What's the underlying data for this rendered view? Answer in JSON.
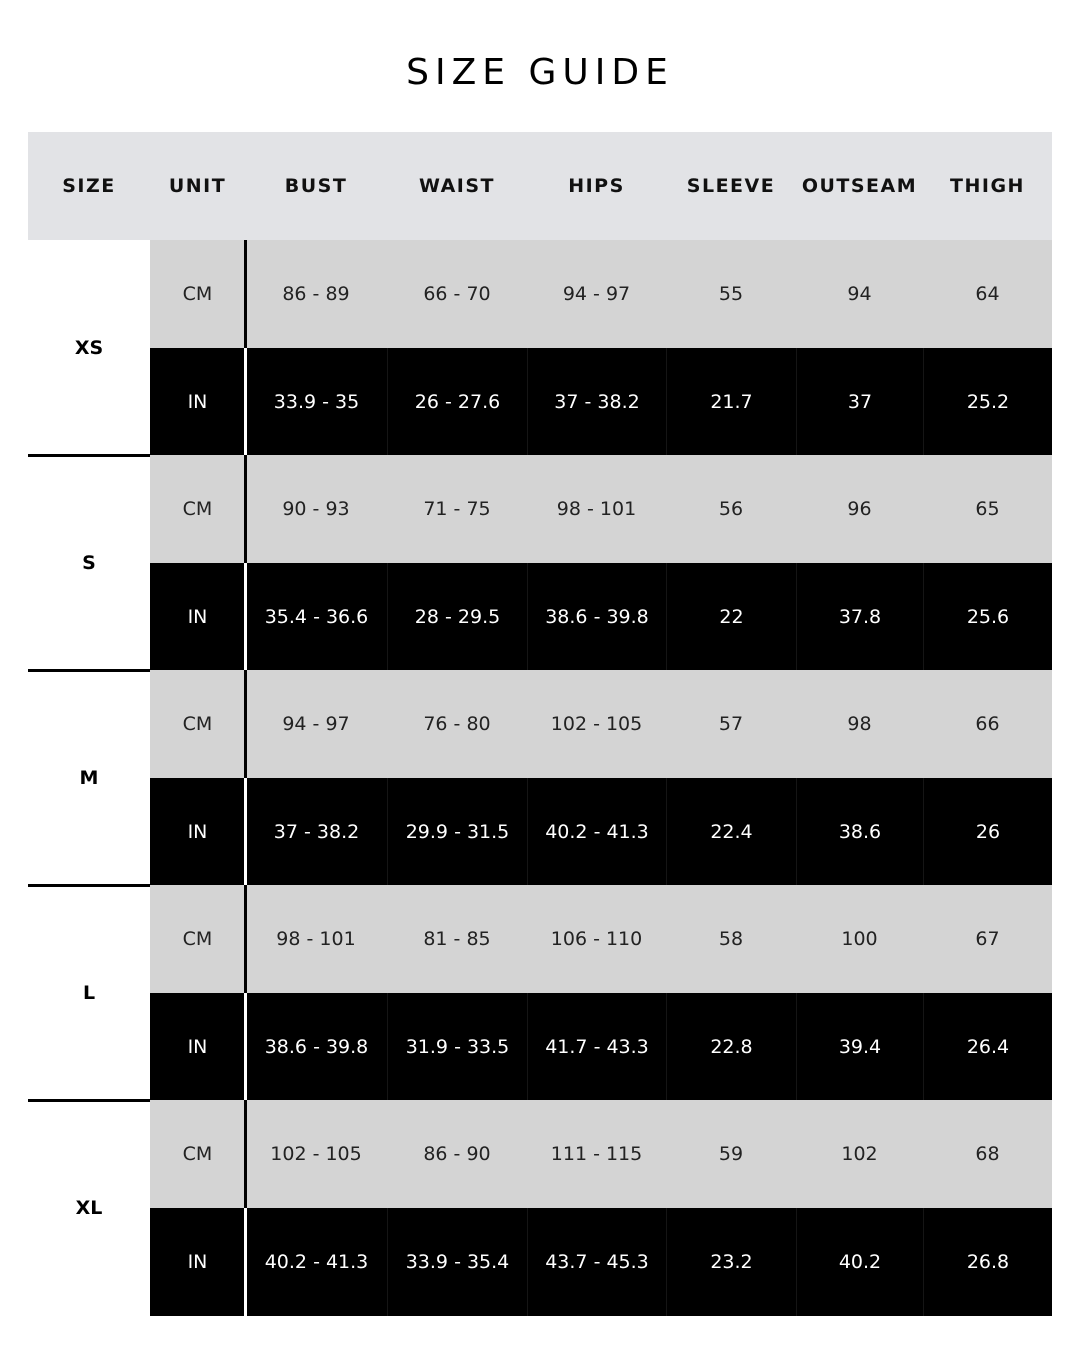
{
  "title": "SIZE GUIDE",
  "columns": [
    "SIZE",
    "UNIT",
    "BUST",
    "WAIST",
    "HIPS",
    "SLEEVE",
    "OUTSEAM",
    "THIGH"
  ],
  "colors": {
    "header_bg": "#e2e3e6",
    "cm_row_bg": "#d4d4d4",
    "in_row_bg": "#000000"
  },
  "rows": [
    {
      "size": "XS",
      "cm": {
        "unit": "CM",
        "values": [
          "86 - 89",
          "66 - 70",
          "94 - 97",
          "55",
          "94",
          "64"
        ]
      },
      "in": {
        "unit": "IN",
        "values": [
          "33.9 - 35",
          "26 - 27.6",
          "37 - 38.2",
          "21.7",
          "37",
          "25.2"
        ]
      }
    },
    {
      "size": "S",
      "cm": {
        "unit": "CM",
        "values": [
          "90 - 93",
          "71 - 75",
          "98 - 101",
          "56",
          "96",
          "65"
        ]
      },
      "in": {
        "unit": "IN",
        "values": [
          "35.4 - 36.6",
          "28 - 29.5",
          "38.6 - 39.8",
          "22",
          "37.8",
          "25.6"
        ]
      }
    },
    {
      "size": "M",
      "cm": {
        "unit": "CM",
        "values": [
          "94 - 97",
          "76 - 80",
          "102 - 105",
          "57",
          "98",
          "66"
        ]
      },
      "in": {
        "unit": "IN",
        "values": [
          "37 - 38.2",
          "29.9 - 31.5",
          "40.2 - 41.3",
          "22.4",
          "38.6",
          "26"
        ]
      }
    },
    {
      "size": "L",
      "cm": {
        "unit": "CM",
        "values": [
          "98 - 101",
          "81 - 85",
          "106 - 110",
          "58",
          "100",
          "67"
        ]
      },
      "in": {
        "unit": "IN",
        "values": [
          "38.6 - 39.8",
          "31.9 - 33.5",
          "41.7 - 43.3",
          "22.8",
          "39.4",
          "26.4"
        ]
      }
    },
    {
      "size": "XL",
      "cm": {
        "unit": "CM",
        "values": [
          "102 - 105",
          "86 - 90",
          "111 - 115",
          "59",
          "102",
          "68"
        ]
      },
      "in": {
        "unit": "IN",
        "values": [
          "40.2 - 41.3",
          "33.9 - 35.4",
          "43.7 - 45.3",
          "23.2",
          "40.2",
          "26.8"
        ]
      }
    }
  ]
}
